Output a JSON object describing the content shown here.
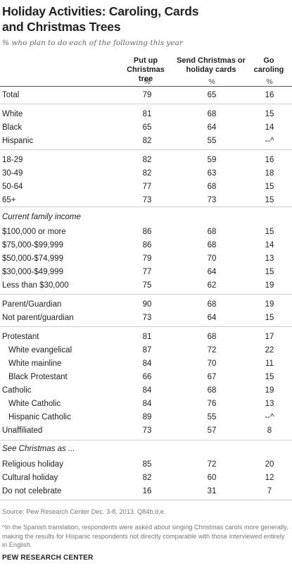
{
  "title_line1": "Holiday Activities: Caroling, Cards",
  "title_line2": "and Christmas Trees",
  "subtitle": "% who plan to do each of the following this year",
  "chart_data": {
    "type": "table",
    "columns": [
      {
        "line1": "Put up",
        "line2": "Christmas tree",
        "unit": "%"
      },
      {
        "line1": "Send Christmas or",
        "line2": "holiday cards",
        "unit": "%"
      },
      {
        "line1": "Go",
        "line2": "caroling",
        "unit": "%"
      }
    ],
    "rows": [
      {
        "label": "Total",
        "values": [
          "79",
          "65",
          "16"
        ]
      },
      {
        "label": "White",
        "values": [
          "81",
          "68",
          "15"
        ]
      },
      {
        "label": "Black",
        "values": [
          "65",
          "64",
          "14"
        ]
      },
      {
        "label": "Hispanic",
        "values": [
          "82",
          "55",
          "--^"
        ]
      },
      {
        "label": "18-29",
        "values": [
          "82",
          "59",
          "16"
        ]
      },
      {
        "label": "30-49",
        "values": [
          "82",
          "63",
          "18"
        ]
      },
      {
        "label": "50-64",
        "values": [
          "77",
          "68",
          "15"
        ]
      },
      {
        "label": "65+",
        "values": [
          "73",
          "73",
          "15"
        ]
      },
      {
        "label": "$100,000 or more",
        "values": [
          "86",
          "68",
          "15"
        ]
      },
      {
        "label": "$75,000-$99,999",
        "values": [
          "86",
          "68",
          "14"
        ]
      },
      {
        "label": "$50,000-$74,999",
        "values": [
          "79",
          "70",
          "13"
        ]
      },
      {
        "label": "$30,000-$49,999",
        "values": [
          "77",
          "64",
          "15"
        ]
      },
      {
        "label": "Less than $30,000",
        "values": [
          "75",
          "62",
          "19"
        ]
      },
      {
        "label": "Parent/Guardian",
        "values": [
          "90",
          "68",
          "19"
        ]
      },
      {
        "label": "Not parent/guardian",
        "values": [
          "73",
          "64",
          "15"
        ]
      },
      {
        "label": "Protestant",
        "values": [
          "81",
          "68",
          "17"
        ]
      },
      {
        "label": "White evangelical",
        "values": [
          "87",
          "72",
          "22"
        ]
      },
      {
        "label": "White mainline",
        "values": [
          "84",
          "70",
          "11"
        ]
      },
      {
        "label": "Black Protestant",
        "values": [
          "66",
          "67",
          "15"
        ]
      },
      {
        "label": "Catholic",
        "values": [
          "84",
          "68",
          "19"
        ]
      },
      {
        "label": "White Catholic",
        "values": [
          "84",
          "76",
          "13"
        ]
      },
      {
        "label": "Hispanic Catholic",
        "values": [
          "89",
          "55",
          "--^"
        ]
      },
      {
        "label": "Unaffiliated",
        "values": [
          "73",
          "57",
          "8"
        ]
      },
      {
        "label": "Religious holiday",
        "values": [
          "85",
          "72",
          "20"
        ]
      },
      {
        "label": "Cultural holiday",
        "values": [
          "82",
          "60",
          "12"
        ]
      },
      {
        "label": "Do not celebrate",
        "values": [
          "16",
          "31",
          "7"
        ]
      }
    ],
    "section_labels": [
      "Current family income",
      "See Christmas as ..."
    ]
  },
  "source": "Source: Pew Research Center Dec. 3-8, 2013. Q84b,d,e.",
  "footnote": "^In the Spanish translation, respondents were asked about singing Christmas carols more generally, making the results for Hispanic respondents not directly comparable with those interviewed entirely in English.",
  "org": "PEW RESEARCH CENTER"
}
